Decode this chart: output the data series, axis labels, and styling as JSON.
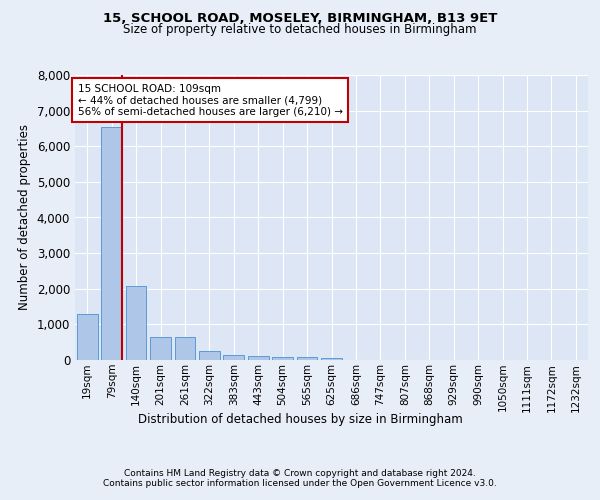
{
  "title1": "15, SCHOOL ROAD, MOSELEY, BIRMINGHAM, B13 9ET",
  "title2": "Size of property relative to detached houses in Birmingham",
  "xlabel": "Distribution of detached houses by size in Birmingham",
  "ylabel": "Number of detached properties",
  "footer1": "Contains HM Land Registry data © Crown copyright and database right 2024.",
  "footer2": "Contains public sector information licensed under the Open Government Licence v3.0.",
  "annotation_title": "15 SCHOOL ROAD: 109sqm",
  "annotation_line1": "← 44% of detached houses are smaller (4,799)",
  "annotation_line2": "56% of semi-detached houses are larger (6,210) →",
  "bar_color": "#aec6e8",
  "bar_edge_color": "#5b9bd5",
  "highlight_color": "#c00000",
  "annotation_box_color": "#ffffff",
  "annotation_box_edge": "#c00000",
  "bg_color": "#e8eef7",
  "plot_bg_color": "#dce6f5",
  "grid_color": "#ffffff",
  "categories": [
    "19sqm",
    "79sqm",
    "140sqm",
    "201sqm",
    "261sqm",
    "322sqm",
    "383sqm",
    "443sqm",
    "504sqm",
    "565sqm",
    "625sqm",
    "686sqm",
    "747sqm",
    "807sqm",
    "868sqm",
    "929sqm",
    "990sqm",
    "1050sqm",
    "1111sqm",
    "1172sqm",
    "1232sqm"
  ],
  "values": [
    1300,
    6550,
    2080,
    650,
    650,
    260,
    130,
    110,
    80,
    80,
    50,
    0,
    0,
    0,
    0,
    0,
    0,
    0,
    0,
    0,
    0
  ],
  "highlight_bar_index": 1,
  "ylim": [
    0,
    8000
  ],
  "yticks": [
    0,
    1000,
    2000,
    3000,
    4000,
    5000,
    6000,
    7000,
    8000
  ]
}
